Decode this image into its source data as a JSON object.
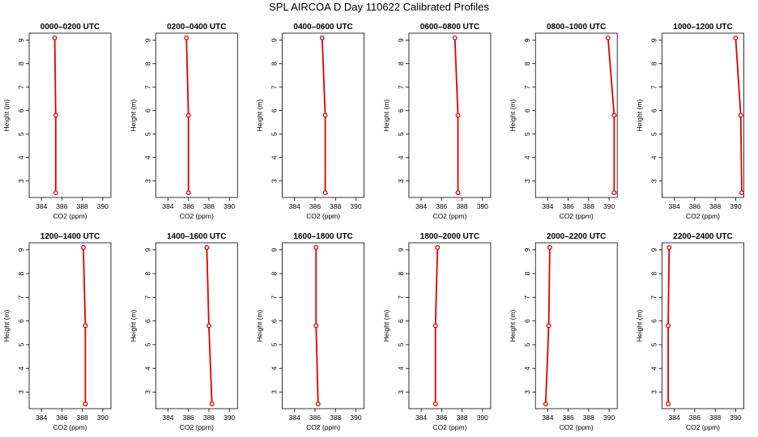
{
  "title": "SPL AIRCOA D  Day 110622  Calibrated Profiles",
  "style": {
    "line_color": "#dd0000",
    "axis_color": "#000000"
  },
  "chart_data": [
    {
      "type": "line",
      "title": "0000–0200 UTC",
      "xlabel": "CO2 (ppm)",
      "ylabel": "Height (m)",
      "xlim": [
        382.8,
        390.8
      ],
      "ylim": [
        2.3,
        9.3
      ],
      "xticks": [
        384,
        386,
        388,
        390
      ],
      "yticks": [
        3,
        4,
        5,
        6,
        7,
        8,
        9
      ],
      "grid": false,
      "series": [
        {
          "x": [
            385.3,
            385.4,
            385.4
          ],
          "y": [
            9.1,
            5.8,
            2.5
          ]
        }
      ]
    },
    {
      "type": "line",
      "title": "0200–0400 UTC",
      "xlabel": "CO2 (ppm)",
      "ylabel": "Height (m)",
      "xlim": [
        382.8,
        390.8
      ],
      "ylim": [
        2.3,
        9.3
      ],
      "xticks": [
        384,
        386,
        388,
        390
      ],
      "yticks": [
        3,
        4,
        5,
        6,
        7,
        8,
        9
      ],
      "grid": false,
      "series": [
        {
          "x": [
            385.8,
            386.0,
            386.0
          ],
          "y": [
            9.1,
            5.8,
            2.5
          ]
        }
      ]
    },
    {
      "type": "line",
      "title": "0400–0600 UTC",
      "xlabel": "CO2 (ppm)",
      "ylabel": "Height (m)",
      "xlim": [
        382.8,
        390.8
      ],
      "ylim": [
        2.3,
        9.3
      ],
      "xticks": [
        384,
        386,
        388,
        390
      ],
      "yticks": [
        3,
        4,
        5,
        6,
        7,
        8,
        9
      ],
      "grid": false,
      "series": [
        {
          "x": [
            386.7,
            387.0,
            387.0
          ],
          "y": [
            9.1,
            5.8,
            2.5
          ]
        }
      ]
    },
    {
      "type": "line",
      "title": "0600–0800 UTC",
      "xlabel": "CO2 (ppm)",
      "ylabel": "Height (m)",
      "xlim": [
        382.8,
        390.8
      ],
      "ylim": [
        2.3,
        9.3
      ],
      "xticks": [
        384,
        386,
        388,
        390
      ],
      "yticks": [
        3,
        4,
        5,
        6,
        7,
        8,
        9
      ],
      "grid": false,
      "series": [
        {
          "x": [
            387.3,
            387.6,
            387.6
          ],
          "y": [
            9.1,
            5.8,
            2.5
          ]
        }
      ]
    },
    {
      "type": "line",
      "title": "0800–1000 UTC",
      "xlabel": "CO2 (ppm)",
      "ylabel": "Height (m)",
      "xlim": [
        382.8,
        390.8
      ],
      "ylim": [
        2.3,
        9.3
      ],
      "xticks": [
        384,
        386,
        388,
        390
      ],
      "yticks": [
        3,
        4,
        5,
        6,
        7,
        8,
        9
      ],
      "grid": false,
      "series": [
        {
          "x": [
            389.9,
            390.5,
            390.5
          ],
          "y": [
            9.1,
            5.8,
            2.5
          ]
        }
      ]
    },
    {
      "type": "line",
      "title": "1000–1200 UTC",
      "xlabel": "CO2 (ppm)",
      "ylabel": "Height (m)",
      "xlim": [
        382.8,
        390.8
      ],
      "ylim": [
        2.3,
        9.3
      ],
      "xticks": [
        384,
        386,
        388,
        390
      ],
      "yticks": [
        3,
        4,
        5,
        6,
        7,
        8,
        9
      ],
      "grid": false,
      "series": [
        {
          "x": [
            390.0,
            390.5,
            390.6
          ],
          "y": [
            9.1,
            5.8,
            2.5
          ]
        }
      ]
    },
    {
      "type": "line",
      "title": "1200–1400 UTC",
      "xlabel": "CO2 (ppm)",
      "ylabel": "Height (m)",
      "xlim": [
        382.8,
        390.8
      ],
      "ylim": [
        2.3,
        9.3
      ],
      "xticks": [
        384,
        386,
        388,
        390
      ],
      "yticks": [
        3,
        4,
        5,
        6,
        7,
        8,
        9
      ],
      "grid": false,
      "series": [
        {
          "x": [
            388.1,
            388.3,
            388.3
          ],
          "y": [
            9.1,
            5.8,
            2.5
          ]
        }
      ]
    },
    {
      "type": "line",
      "title": "1400–1600 UTC",
      "xlabel": "CO2 (ppm)",
      "ylabel": "Height (m)",
      "xlim": [
        382.8,
        390.8
      ],
      "ylim": [
        2.3,
        9.3
      ],
      "xticks": [
        384,
        386,
        388,
        390
      ],
      "yticks": [
        3,
        4,
        5,
        6,
        7,
        8,
        9
      ],
      "grid": false,
      "series": [
        {
          "x": [
            387.8,
            388.0,
            388.3
          ],
          "y": [
            9.1,
            5.8,
            2.5
          ]
        }
      ]
    },
    {
      "type": "line",
      "title": "1600–1800 UTC",
      "xlabel": "CO2 (ppm)",
      "ylabel": "Height (m)",
      "xlim": [
        382.8,
        390.8
      ],
      "ylim": [
        2.3,
        9.3
      ],
      "xticks": [
        384,
        386,
        388,
        390
      ],
      "yticks": [
        3,
        4,
        5,
        6,
        7,
        8,
        9
      ],
      "grid": false,
      "series": [
        {
          "x": [
            386.1,
            386.1,
            386.3
          ],
          "y": [
            9.1,
            5.8,
            2.5
          ]
        }
      ]
    },
    {
      "type": "line",
      "title": "1800–2000 UTC",
      "xlabel": "CO2 (ppm)",
      "ylabel": "Height (m)",
      "xlim": [
        382.8,
        390.8
      ],
      "ylim": [
        2.3,
        9.3
      ],
      "xticks": [
        384,
        386,
        388,
        390
      ],
      "yticks": [
        3,
        4,
        5,
        6,
        7,
        8,
        9
      ],
      "grid": false,
      "series": [
        {
          "x": [
            385.6,
            385.4,
            385.4
          ],
          "y": [
            9.1,
            5.8,
            2.5
          ]
        }
      ]
    },
    {
      "type": "line",
      "title": "2000–2200 UTC",
      "xlabel": "CO2 (ppm)",
      "ylabel": "Height (m)",
      "xlim": [
        382.8,
        390.8
      ],
      "ylim": [
        2.3,
        9.3
      ],
      "xticks": [
        384,
        386,
        388,
        390
      ],
      "yticks": [
        3,
        4,
        5,
        6,
        7,
        8,
        9
      ],
      "grid": false,
      "series": [
        {
          "x": [
            384.2,
            384.1,
            383.8
          ],
          "y": [
            9.1,
            5.8,
            2.5
          ]
        }
      ]
    },
    {
      "type": "line",
      "title": "2200–2400 UTC",
      "xlabel": "CO2 (ppm)",
      "ylabel": "Height (m)",
      "xlim": [
        382.8,
        390.8
      ],
      "ylim": [
        2.3,
        9.3
      ],
      "xticks": [
        384,
        386,
        388,
        390
      ],
      "yticks": [
        3,
        4,
        5,
        6,
        7,
        8,
        9
      ],
      "grid": false,
      "series": [
        {
          "x": [
            383.5,
            383.4,
            383.4
          ],
          "y": [
            9.1,
            5.8,
            2.5
          ]
        }
      ]
    }
  ]
}
